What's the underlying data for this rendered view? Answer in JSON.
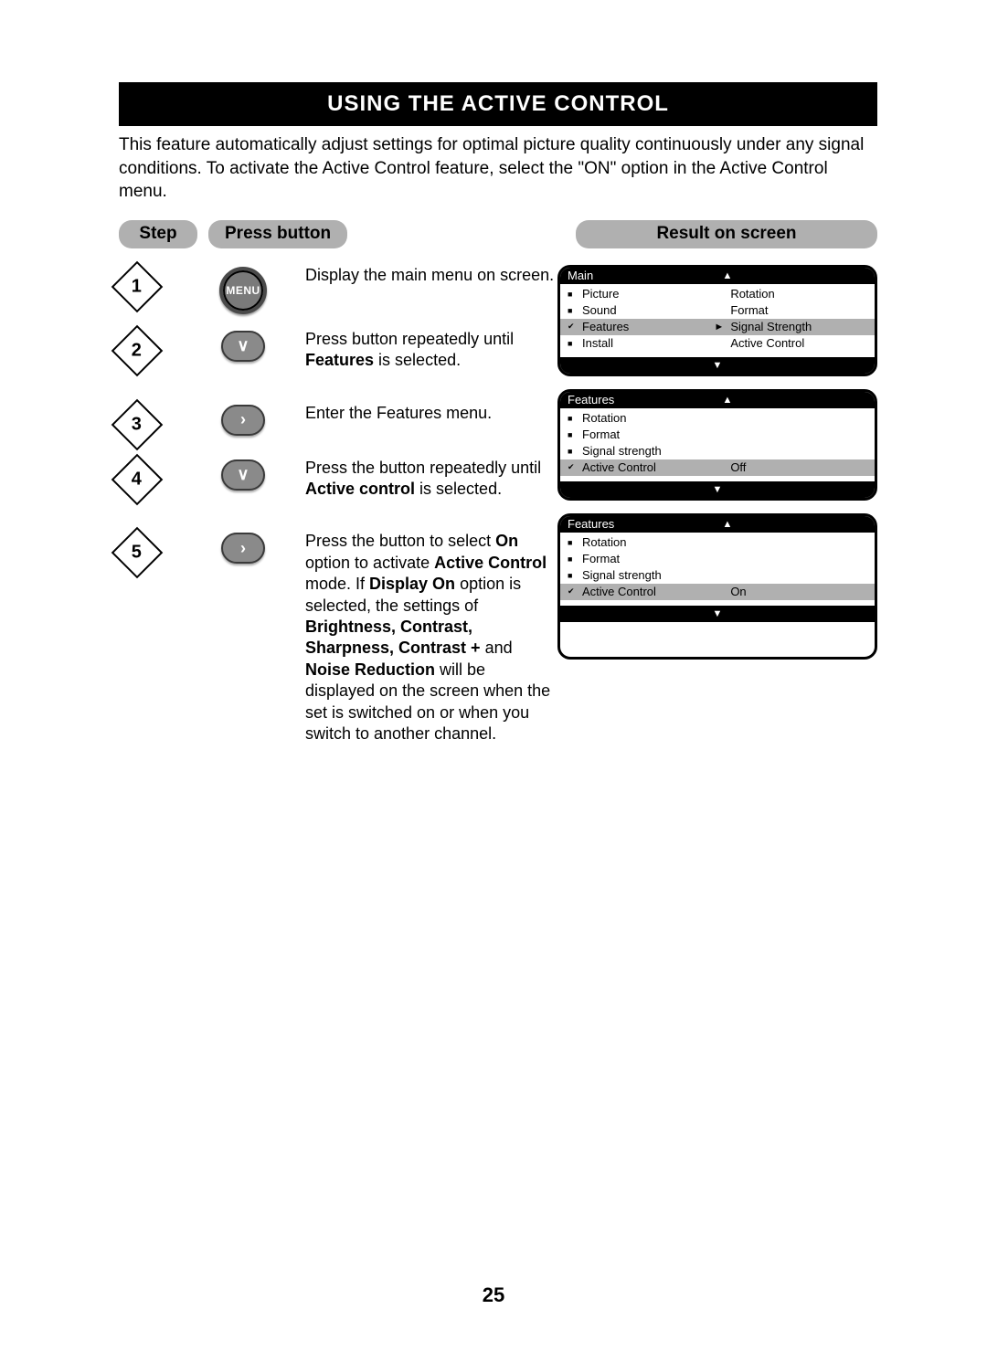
{
  "page_number": "25",
  "title_bar": "USING THE ACTIVE CONTROL",
  "intro": "This feature automatically adjust settings for optimal picture quality continuously under any signal conditions. To activate the Active Control feature, select the \"ON\" option in the Active Control menu.",
  "headers": {
    "step": "Step",
    "press": "Press button",
    "result": "Result on screen"
  },
  "menu_btn_label": "MENU",
  "steps": {
    "s1": {
      "num": "1",
      "text_a": "Display the main menu on screen."
    },
    "s2": {
      "num": "2",
      "text_a": "Press button repeatedly until ",
      "bold_a": "Features",
      "text_b": " is selected."
    },
    "s3": {
      "num": "3",
      "text_a": "Enter the Features menu."
    },
    "s4": {
      "num": "4",
      "text_a": "Press the button repeatedly until ",
      "bold_a": "Active control",
      "text_b": " is selected."
    },
    "s5": {
      "num": "5",
      "p1a": "Press the button to select ",
      "p1b": "On",
      "p2a": " option to activate ",
      "p2b": "Active Control",
      "p3a": " mode. If ",
      "p3b": "Display On",
      "p3c": " option is selected, the settings of ",
      "p3d": "Brightness, Contrast, Sharpness, Contrast +",
      "p4a": " and ",
      "p4b": "Noise Reduction",
      "p4c": " will be displayed on the screen when the set is switched on or when you switch to another channel."
    }
  },
  "screens": {
    "main": {
      "title": "Main",
      "rows": [
        {
          "mk": "■",
          "lbl": "Picture",
          "mk2": "",
          "val": "Rotation",
          "sel": false
        },
        {
          "mk": "■",
          "lbl": "Sound",
          "mk2": "",
          "val": "Format",
          "sel": false
        },
        {
          "mk": "✔",
          "lbl": "Features",
          "mk2": "►",
          "val": "Signal Strength",
          "sel": true
        },
        {
          "mk": "■",
          "lbl": "Install",
          "mk2": "",
          "val": "Active Control",
          "sel": false
        }
      ]
    },
    "feat_off": {
      "title": "Features",
      "rows": [
        {
          "mk": "■",
          "lbl": "Rotation",
          "val": "",
          "sel": false
        },
        {
          "mk": "■",
          "lbl": "Format",
          "val": "",
          "sel": false
        },
        {
          "mk": "■",
          "lbl": "Signal strength",
          "val": "",
          "sel": false
        },
        {
          "mk": "✔",
          "lbl": "Active Control",
          "val": "Off",
          "sel": true
        }
      ]
    },
    "feat_on": {
      "title": "Features",
      "rows": [
        {
          "mk": "■",
          "lbl": "Rotation",
          "val": "",
          "sel": false
        },
        {
          "mk": "■",
          "lbl": "Format",
          "val": "",
          "sel": false
        },
        {
          "mk": "■",
          "lbl": "Signal strength",
          "val": "",
          "sel": false
        },
        {
          "mk": "✔",
          "lbl": "Active Control",
          "val": "On",
          "sel": true
        }
      ]
    }
  }
}
